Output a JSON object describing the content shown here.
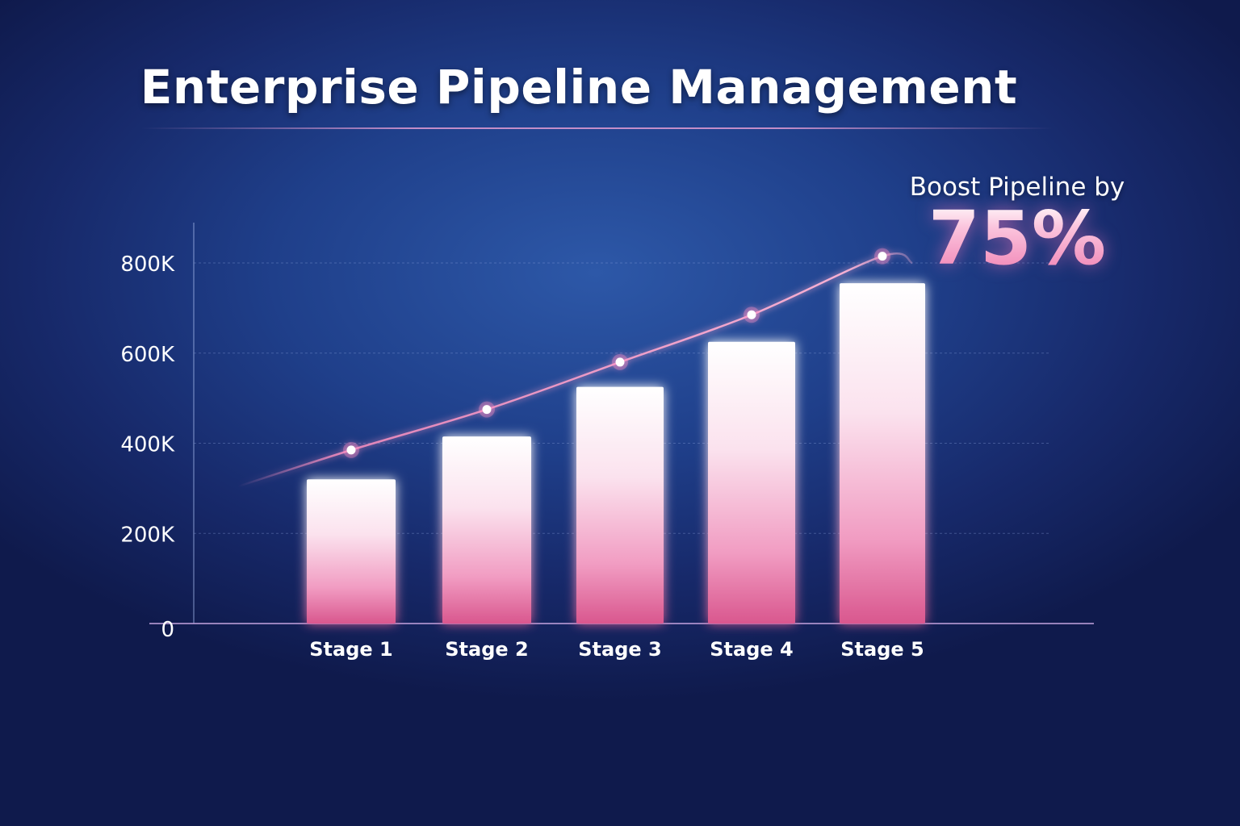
{
  "header": {
    "title": "Enterprise Pipeline Management"
  },
  "callout": {
    "label": "Boost Pipeline by",
    "value": "75%"
  },
  "colors": {
    "background_center": "#2d58a8",
    "background_edge": "#0f1a4c",
    "bar_top": "#ffffff",
    "bar_bottom": "#e1588f",
    "trend_line": "#f08bbd",
    "accent_text": "#f7a9cf"
  },
  "chart_data": {
    "type": "bar",
    "categories": [
      "Stage 1",
      "Stage 2",
      "Stage 3",
      "Stage 4",
      "Stage 5"
    ],
    "values": [
      320000,
      415000,
      525000,
      625000,
      755000
    ],
    "trend": [
      385000,
      475000,
      580000,
      685000,
      815000
    ],
    "title": "",
    "xlabel": "",
    "ylabel": "",
    "ylim": [
      0,
      800000
    ],
    "yticks": [
      0,
      200000,
      400000,
      600000,
      800000
    ],
    "ytick_labels": [
      "0",
      "200K",
      "400K",
      "600K",
      "800K"
    ],
    "grid": true,
    "legend": "none"
  }
}
